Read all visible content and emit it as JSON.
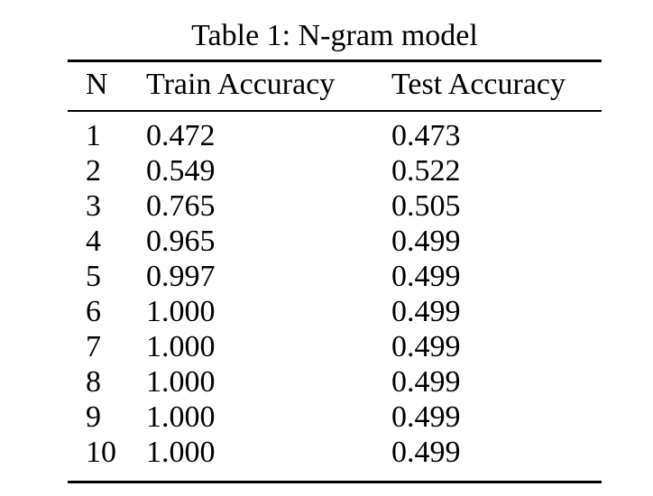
{
  "page": {
    "background": "#ffffff",
    "text_color": "#000000"
  },
  "table": {
    "caption": "Table 1: N-gram model",
    "columns": [
      "N",
      "Train Accuracy",
      "Test Accuracy"
    ],
    "rows": [
      {
        "n": "1",
        "train": "0.472",
        "test": "0.473"
      },
      {
        "n": "2",
        "train": "0.549",
        "test": "0.522"
      },
      {
        "n": "3",
        "train": "0.765",
        "test": "0.505"
      },
      {
        "n": "4",
        "train": "0.965",
        "test": "0.499"
      },
      {
        "n": "5",
        "train": "0.997",
        "test": "0.499"
      },
      {
        "n": "6",
        "train": "1.000",
        "test": "0.499"
      },
      {
        "n": "7",
        "train": "1.000",
        "test": "0.499"
      },
      {
        "n": "8",
        "train": "1.000",
        "test": "0.499"
      },
      {
        "n": "9",
        "train": "1.000",
        "test": "0.499"
      },
      {
        "n": "10",
        "train": "1.000",
        "test": "0.499"
      }
    ]
  },
  "chart_data": {
    "type": "table",
    "title": "Table 1: N-gram model",
    "columns": [
      "N",
      "Train Accuracy",
      "Test Accuracy"
    ],
    "x": [
      1,
      2,
      3,
      4,
      5,
      6,
      7,
      8,
      9,
      10
    ],
    "series": [
      {
        "name": "Train Accuracy",
        "values": [
          0.472,
          0.549,
          0.765,
          0.965,
          0.997,
          1.0,
          1.0,
          1.0,
          1.0,
          1.0
        ]
      },
      {
        "name": "Test Accuracy",
        "values": [
          0.473,
          0.522,
          0.505,
          0.499,
          0.499,
          0.499,
          0.499,
          0.499,
          0.499,
          0.499
        ]
      }
    ]
  }
}
